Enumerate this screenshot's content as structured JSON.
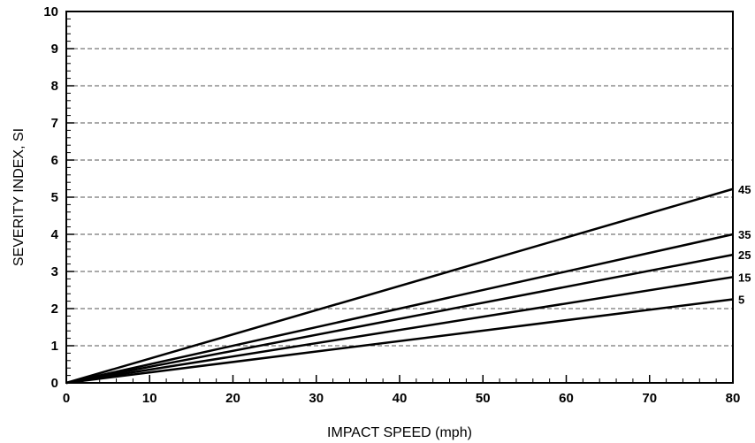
{
  "chart_data": {
    "type": "line",
    "xlabel": "IMPACT SPEED (mph)",
    "ylabel": "SEVERITY INDEX, SI",
    "xlim": [
      0,
      80
    ],
    "ylim": [
      0,
      10
    ],
    "x_ticks": [
      0,
      10,
      20,
      30,
      40,
      50,
      60,
      70,
      80
    ],
    "y_ticks": [
      0,
      1,
      2,
      3,
      4,
      5,
      6,
      7,
      8,
      9,
      10
    ],
    "grid": "horizontal dashed",
    "series": [
      {
        "name": "45",
        "x": [
          0,
          80
        ],
        "y": [
          0,
          5.22
        ]
      },
      {
        "name": "35",
        "x": [
          0,
          80
        ],
        "y": [
          0,
          4.0
        ]
      },
      {
        "name": "25",
        "x": [
          0,
          80
        ],
        "y": [
          0,
          3.45
        ]
      },
      {
        "name": "15",
        "x": [
          0,
          80
        ],
        "y": [
          0,
          2.85
        ]
      },
      {
        "name": "5",
        "x": [
          0,
          80
        ],
        "y": [
          0,
          2.25
        ]
      }
    ]
  }
}
